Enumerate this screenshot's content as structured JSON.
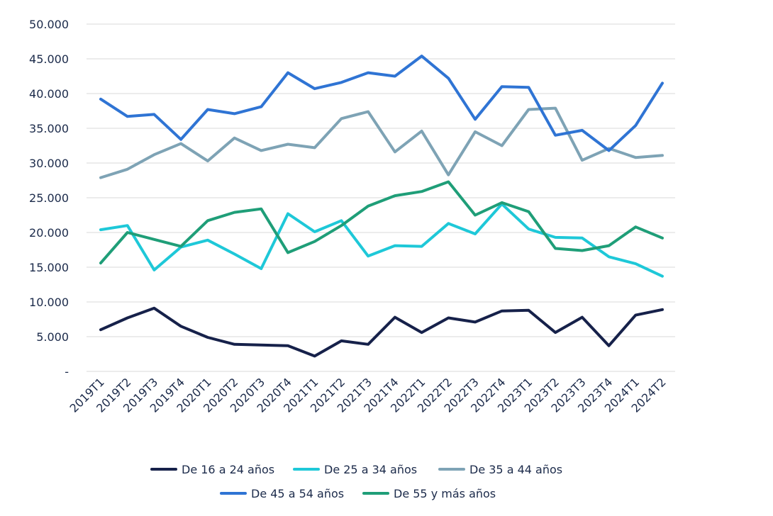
{
  "chart_data": {
    "type": "line",
    "title": "",
    "xlabel": "",
    "ylabel": "",
    "ylim": [
      0,
      50000
    ],
    "yticks": [
      {
        "value": 0,
        "label": "-"
      },
      {
        "value": 5000,
        "label": "5.000"
      },
      {
        "value": 10000,
        "label": "10.000"
      },
      {
        "value": 15000,
        "label": "15.000"
      },
      {
        "value": 20000,
        "label": "20.000"
      },
      {
        "value": 25000,
        "label": "25.000"
      },
      {
        "value": 30000,
        "label": "30.000"
      },
      {
        "value": 35000,
        "label": "35.000"
      },
      {
        "value": 40000,
        "label": "40.000"
      },
      {
        "value": 45000,
        "label": "45.000"
      },
      {
        "value": 50000,
        "label": "50.000"
      }
    ],
    "grid": true,
    "legend": "bottom",
    "categories": [
      "2019T1",
      "2019T2",
      "2019T3",
      "2019T4",
      "2020T1",
      "2020T2",
      "2020T3",
      "2020T4",
      "2021T1",
      "2021T2",
      "2021T3",
      "2021T4",
      "2022T1",
      "2022T2",
      "2022T3",
      "2022T4",
      "2023T1",
      "2023T2",
      "2023T3",
      "2023T4",
      "2024T1",
      "2024T2"
    ],
    "series": [
      {
        "name": "De 16 a 24 años",
        "color": "#16214a",
        "values": [
          6000,
          7700,
          9100,
          6500,
          4900,
          3900,
          3800,
          3700,
          2200,
          4400,
          3900,
          7800,
          5600,
          7700,
          7100,
          8700,
          8800,
          5600,
          7800,
          3700,
          8100,
          8900
        ]
      },
      {
        "name": "De 25 a 34 años",
        "color": "#1ec8d8",
        "values": [
          20400,
          21000,
          14600,
          17900,
          18900,
          16900,
          14800,
          22700,
          20100,
          21700,
          16600,
          18100,
          18000,
          21300,
          19800,
          24100,
          20500,
          19300,
          19200,
          16500,
          15500,
          13700
        ]
      },
      {
        "name": "De 35 a 44 años",
        "color": "#7ea3b5",
        "values": [
          27900,
          29100,
          31200,
          32800,
          30300,
          33600,
          31800,
          32700,
          32200,
          36400,
          37400,
          31600,
          34600,
          28300,
          34500,
          32500,
          37700,
          37900,
          30400,
          32100,
          30800,
          31100
        ]
      },
      {
        "name": "De 45 a 54 años",
        "color": "#2f74d4",
        "values": [
          39200,
          36700,
          37000,
          33400,
          37700,
          37100,
          38100,
          43000,
          40700,
          41600,
          43000,
          42500,
          45400,
          42200,
          36300,
          41000,
          40900,
          34000,
          34700,
          31800,
          35400,
          41500
        ]
      },
      {
        "name": "De 55 y más años",
        "color": "#1f9e78",
        "values": [
          15600,
          20000,
          19000,
          18000,
          21700,
          22900,
          23400,
          17100,
          18700,
          21000,
          23800,
          25300,
          25900,
          27300,
          22500,
          24300,
          23000,
          17700,
          17400,
          18100,
          20800,
          19200
        ]
      }
    ]
  }
}
